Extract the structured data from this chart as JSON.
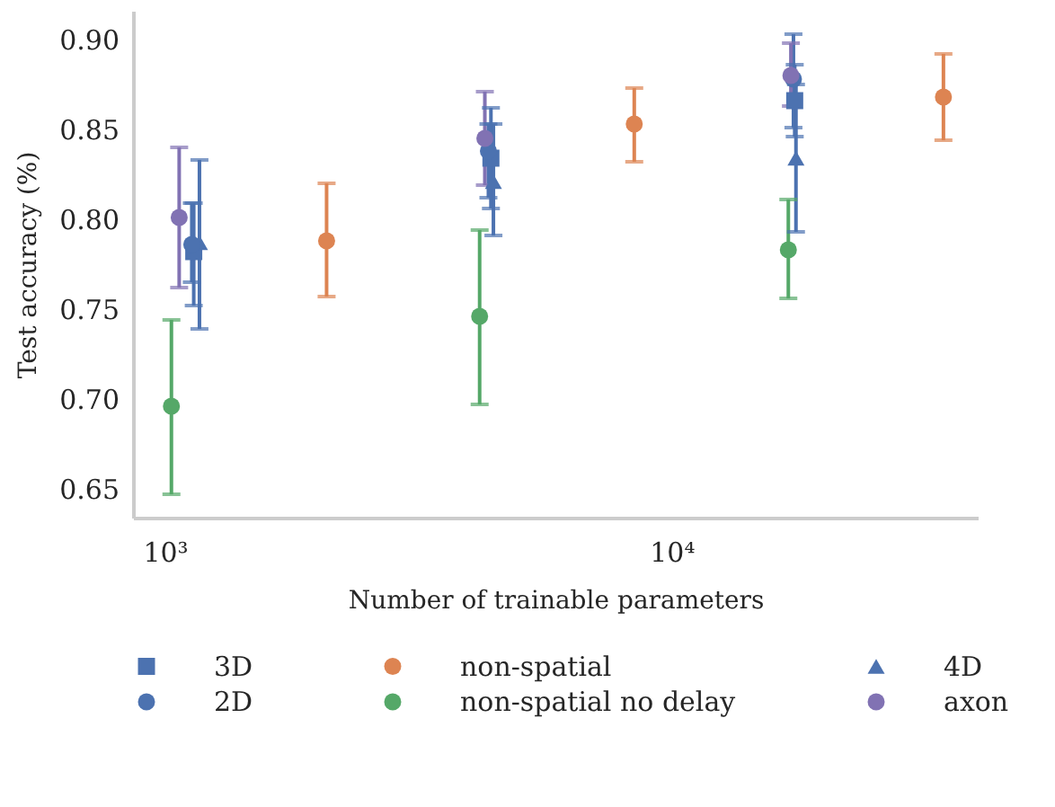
{
  "chart_data": {
    "type": "scatter",
    "xlabel": "Number of trainable parameters",
    "ylabel": "Test accuracy (%)",
    "log": "x",
    "grid": false,
    "legend": "bottom",
    "xlim": [
      865,
      40200
    ],
    "xticks": [
      {
        "value": 1000,
        "label": "10³"
      },
      {
        "value": 10000,
        "label": "10⁴"
      }
    ],
    "ylim": [
      0.634,
      0.916
    ],
    "yticks": [
      {
        "value": 0.65,
        "label": "0.65"
      },
      {
        "value": 0.7,
        "label": "0.70"
      },
      {
        "value": 0.75,
        "label": "0.75"
      },
      {
        "value": 0.8,
        "label": "0.80"
      },
      {
        "value": 0.85,
        "label": "0.85"
      },
      {
        "value": 0.9,
        "label": "0.90"
      }
    ],
    "series": [
      {
        "name": "3D",
        "color": "#4c72b0",
        "marker": "square",
        "x": [
          1140,
          4400,
          17500
        ],
        "values": [
          0.782,
          0.834,
          0.866
        ],
        "errors": [
          [
            0.752,
            0.809
          ],
          [
            0.806,
            0.862
          ],
          [
            0.846,
            0.886
          ]
        ]
      },
      {
        "name": "non-spatial",
        "color": "#dd8452",
        "marker": "circle",
        "x": [
          2085,
          8440,
          34400
        ],
        "values": [
          0.788,
          0.853,
          0.868
        ],
        "errors": [
          [
            0.757,
            0.82
          ],
          [
            0.832,
            0.873
          ],
          [
            0.844,
            0.892
          ]
        ]
      },
      {
        "name": "4D",
        "color": "#4c72b0",
        "marker": "triangle",
        "x": [
          1170,
          4450,
          17600
        ],
        "values": [
          0.787,
          0.821,
          0.834
        ],
        "errors": [
          [
            0.739,
            0.833
          ],
          [
            0.791,
            0.853
          ],
          [
            0.793,
            0.875
          ]
        ]
      },
      {
        "name": "2D",
        "color": "#4c72b0",
        "marker": "circle",
        "x": [
          1130,
          4350,
          17400
        ],
        "values": [
          0.786,
          0.838,
          0.878
        ],
        "errors": [
          [
            0.765,
            0.809
          ],
          [
            0.812,
            0.853
          ],
          [
            0.851,
            0.903
          ]
        ]
      },
      {
        "name": "non-spatial no delay",
        "color": "#55a868",
        "marker": "circle",
        "x": [
          1030,
          4180,
          17000
        ],
        "values": [
          0.696,
          0.746,
          0.783
        ],
        "errors": [
          [
            0.647,
            0.744
          ],
          [
            0.697,
            0.794
          ],
          [
            0.756,
            0.811
          ]
        ]
      },
      {
        "name": "axon",
        "color": "#8172b3",
        "marker": "circle",
        "x": [
          1067,
          4280,
          17200
        ],
        "values": [
          0.801,
          0.845,
          0.88
        ],
        "errors": [
          [
            0.762,
            0.84
          ],
          [
            0.819,
            0.871
          ],
          [
            0.863,
            0.898
          ]
        ]
      }
    ]
  }
}
